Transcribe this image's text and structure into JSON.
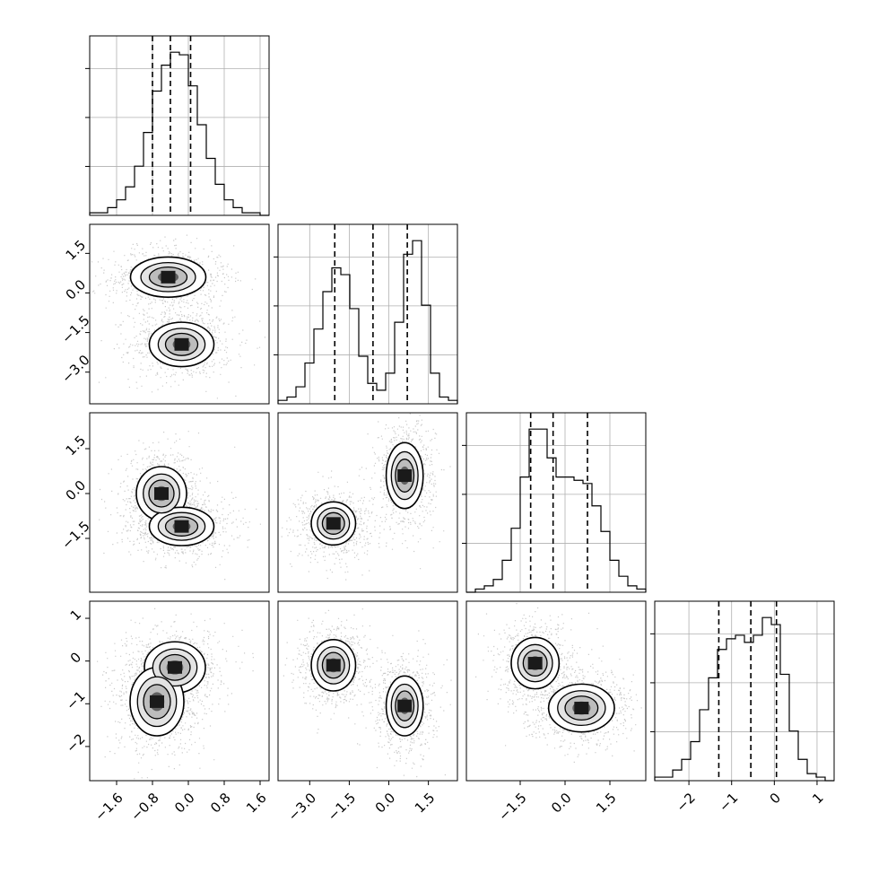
{
  "chart_data": {
    "type": "corner",
    "variables": 4,
    "axes": [
      {
        "range": [
          -2.2,
          1.8
        ],
        "ticks": [
          -1.6,
          -0.8,
          0.0,
          0.8,
          1.6
        ],
        "tick_labels": [
          "−1.6",
          "−0.8",
          "0.0",
          "0.8",
          "1.6"
        ]
      },
      {
        "range": [
          -4.2,
          2.6
        ],
        "ticks": [
          -3.0,
          -1.5,
          0.0,
          1.5
        ],
        "tick_labels": [
          "−3.0",
          "−1.5",
          "0.0",
          "1.5"
        ]
      },
      {
        "range": [
          -3.3,
          2.7
        ],
        "ticks": [
          -1.5,
          0.0,
          1.5
        ],
        "tick_labels": [
          "−1.5",
          "0.0",
          "1.5"
        ]
      },
      {
        "range": [
          -2.8,
          1.4
        ],
        "ticks": [
          -2,
          -1,
          0,
          1
        ],
        "tick_labels": [
          "−2",
          "−1",
          "0",
          "1"
        ]
      }
    ],
    "histograms": [
      {
        "var": 0,
        "bin_edges": [
          -2.2,
          -2.0,
          -1.8,
          -1.6,
          -1.4,
          -1.2,
          -1.0,
          -0.8,
          -0.6,
          -0.4,
          -0.2,
          0.0,
          0.2,
          0.4,
          0.6,
          0.8,
          1.0,
          1.2,
          1.4,
          1.6,
          1.8
        ],
        "counts": [
          1,
          1,
          3,
          6,
          11,
          19,
          32,
          48,
          58,
          63,
          62,
          50,
          35,
          22,
          12,
          6,
          3,
          1,
          1,
          0
        ],
        "quantiles": [
          -0.8,
          -0.4,
          0.05
        ]
      },
      {
        "var": 1,
        "bin_edges": [
          -4.2,
          -3.86,
          -3.52,
          -3.18,
          -2.84,
          -2.5,
          -2.16,
          -1.82,
          -1.48,
          -1.14,
          -0.8,
          -0.46,
          -0.12,
          0.22,
          0.56,
          0.9,
          1.24,
          1.58,
          1.92,
          2.26,
          2.6
        ],
        "counts": [
          1,
          2,
          5,
          12,
          22,
          33,
          40,
          38,
          28,
          14,
          6,
          4,
          9,
          24,
          44,
          48,
          29,
          9,
          2,
          1
        ],
        "quantiles": [
          -2.05,
          -0.6,
          0.7
        ]
      },
      {
        "var": 2,
        "bin_edges": [
          -3.3,
          -3.0,
          -2.7,
          -2.4,
          -2.1,
          -1.8,
          -1.5,
          -1.2,
          -0.9,
          -0.6,
          -0.3,
          0.0,
          0.3,
          0.6,
          0.9,
          1.2,
          1.5,
          1.8,
          2.1,
          2.4,
          2.7
        ],
        "counts": [
          0,
          1,
          2,
          4,
          10,
          20,
          36,
          51,
          51,
          42,
          36,
          36,
          35,
          34,
          27,
          19,
          10,
          5,
          2,
          1
        ],
        "quantiles": [
          -1.15,
          -0.4,
          0.75
        ]
      },
      {
        "var": 3,
        "bin_edges": [
          -2.8,
          -2.59,
          -2.38,
          -2.17,
          -1.96,
          -1.75,
          -1.54,
          -1.33,
          -1.12,
          -0.91,
          -0.7,
          -0.49,
          -0.28,
          -0.07,
          0.14,
          0.35,
          0.56,
          0.77,
          0.98,
          1.19,
          1.4
        ],
        "counts": [
          1,
          1,
          3,
          6,
          11,
          20,
          29,
          37,
          40,
          41,
          39,
          41,
          46,
          44,
          30,
          14,
          6,
          2,
          1,
          0
        ],
        "quantiles": [
          -1.3,
          -0.55,
          0.05
        ]
      }
    ],
    "density_modes": [
      {
        "row": 1,
        "col": 0,
        "modes": [
          {
            "x": -0.45,
            "y": 0.6,
            "sx": 0.42,
            "sy": 0.38
          },
          {
            "x": -0.15,
            "y": -1.95,
            "sx": 0.36,
            "sy": 0.42
          }
        ]
      },
      {
        "row": 2,
        "col": 0,
        "modes": [
          {
            "x": -0.6,
            "y": 0.0,
            "sx": 0.28,
            "sy": 0.45
          },
          {
            "x": -0.15,
            "y": -1.1,
            "sx": 0.36,
            "sy": 0.32
          }
        ]
      },
      {
        "row": 2,
        "col": 1,
        "modes": [
          {
            "x": -2.1,
            "y": -1.0,
            "sx": 0.42,
            "sy": 0.36
          },
          {
            "x": 0.6,
            "y": 0.6,
            "sx": 0.35,
            "sy": 0.55
          }
        ]
      },
      {
        "row": 3,
        "col": 0,
        "modes": [
          {
            "x": -0.3,
            "y": -0.15,
            "sx": 0.34,
            "sy": 0.3
          },
          {
            "x": -0.7,
            "y": -0.95,
            "sx": 0.3,
            "sy": 0.4
          }
        ]
      },
      {
        "row": 3,
        "col": 1,
        "modes": [
          {
            "x": -2.1,
            "y": -0.1,
            "sx": 0.42,
            "sy": 0.3
          },
          {
            "x": 0.6,
            "y": -1.05,
            "sx": 0.35,
            "sy": 0.35
          }
        ]
      },
      {
        "row": 3,
        "col": 2,
        "modes": [
          {
            "x": -1.0,
            "y": -0.05,
            "sx": 0.4,
            "sy": 0.3
          },
          {
            "x": 0.55,
            "y": -1.1,
            "sx": 0.55,
            "sy": 0.28
          }
        ]
      }
    ],
    "grid": true
  }
}
